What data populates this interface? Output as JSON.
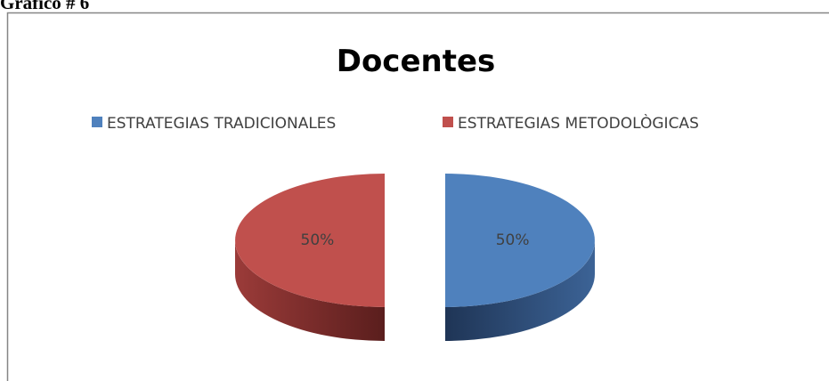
{
  "caption": "Gráfico # 6",
  "chart_data": {
    "type": "pie",
    "title": "Docentes",
    "categories": [
      "ESTRATEGIAS TRADICIONALES",
      "ESTRATEGIAS METODOLÒGICAS"
    ],
    "values": [
      50,
      50
    ],
    "value_labels": [
      "50%",
      "50%"
    ],
    "colors": [
      "#4f81bd",
      "#c0504d"
    ],
    "legend": "top"
  }
}
